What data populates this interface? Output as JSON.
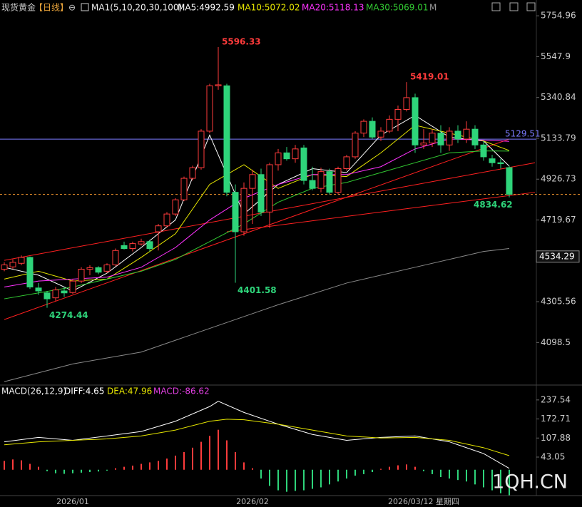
{
  "chart_data": [
    {
      "type": "candlestick",
      "title": "现货黄金",
      "period": "【日线】",
      "icon": "⊖",
      "indicator": "MA1(5,10,20,30,100)",
      "toolbar": "M",
      "categories": [
        null,
        null,
        null,
        null,
        null,
        null,
        null,
        null,
        "2026/01",
        null,
        null,
        null,
        null,
        null,
        null,
        null,
        null,
        null,
        null,
        null,
        null,
        null,
        null,
        null,
        null,
        null,
        null,
        null,
        null,
        "2026/02",
        null,
        null,
        null,
        null,
        null,
        null,
        null,
        null,
        null,
        null,
        null,
        null,
        null,
        null,
        null,
        null,
        null,
        null,
        null,
        "2026/03/12 星期四",
        null,
        null,
        null,
        null,
        null,
        null,
        null,
        null,
        null,
        null
      ],
      "up_color": "#ff3b3b",
      "down_color": "#2ed47a",
      "ohlc": [
        [
          4470,
          4505,
          4460,
          4492
        ],
        [
          4482,
          4520,
          4472,
          4505
        ],
        [
          4500,
          4540,
          4490,
          4530
        ],
        [
          4530,
          4535,
          4370,
          4380
        ],
        [
          4375,
          4400,
          4340,
          4360
        ],
        [
          4350,
          4360,
          4274.44,
          4320
        ],
        [
          4325,
          4380,
          4310,
          4365
        ],
        [
          4360,
          4380,
          4330,
          4350
        ],
        [
          4352,
          4420,
          4345,
          4410
        ],
        [
          4410,
          4480,
          4400,
          4470
        ],
        [
          4470,
          4490,
          4440,
          4478
        ],
        [
          4478,
          4485,
          4445,
          4455
        ],
        [
          4460,
          4500,
          4450,
          4492
        ],
        [
          4492,
          4575,
          4485,
          4565
        ],
        [
          4590,
          4610,
          4570,
          4575
        ],
        [
          4575,
          4610,
          4560,
          4600
        ],
        [
          4598,
          4625,
          4590,
          4610
        ],
        [
          4610,
          4620,
          4560,
          4575
        ],
        [
          4660,
          4700,
          4565,
          4690
        ],
        [
          4690,
          4760,
          4680,
          4750
        ],
        [
          4750,
          4830,
          4740,
          4822
        ],
        [
          4822,
          4940,
          4815,
          4931
        ],
        [
          4931,
          4995,
          4920,
          4985
        ],
        [
          4985,
          5180,
          4975,
          5170
        ],
        [
          5170,
          5410,
          5160,
          5400
        ],
        [
          5400,
          5596.33,
          5380,
          5405
        ],
        [
          5400,
          5410,
          4840,
          4860
        ],
        [
          4860,
          4900,
          4401.58,
          4660
        ],
        [
          4660,
          4910,
          4640,
          4880
        ],
        [
          4880,
          4975,
          4700,
          4950
        ],
        [
          4950,
          4980,
          4740,
          4760
        ],
        [
          4760,
          5010,
          4680,
          5000
        ],
        [
          5000,
          5080,
          4970,
          5060
        ],
        [
          5060,
          5090,
          5020,
          5030
        ],
        [
          5030,
          5100,
          5010,
          5080
        ],
        [
          5085,
          5100,
          4900,
          4920
        ],
        [
          4920,
          4990,
          4870,
          4880
        ],
        [
          4880,
          4985,
          4860,
          4965
        ],
        [
          4965,
          4980,
          4850,
          4860
        ],
        [
          4860,
          4990,
          4850,
          4980
        ],
        [
          4980,
          5050,
          4970,
          5040
        ],
        [
          5040,
          5170,
          5030,
          5160
        ],
        [
          5160,
          5230,
          5140,
          5220
        ],
        [
          5220,
          5240,
          5130,
          5140
        ],
        [
          5140,
          5190,
          5120,
          5170
        ],
        [
          5170,
          5250,
          5160,
          5230
        ],
        [
          5230,
          5300,
          5170,
          5280
        ],
        [
          5280,
          5419.01,
          5270,
          5340
        ],
        [
          5340,
          5360,
          5060,
          5100
        ],
        [
          5100,
          5180,
          5080,
          5110
        ],
        [
          5110,
          5180,
          5090,
          5160
        ],
        [
          5160,
          5200,
          5060,
          5100
        ],
        [
          5100,
          5190,
          5070,
          5170
        ],
        [
          5170,
          5200,
          5110,
          5130
        ],
        [
          5130,
          5220,
          5110,
          5180
        ],
        [
          5180,
          5200,
          5080,
          5100
        ],
        [
          5100,
          5120,
          5020,
          5040
        ],
        [
          5030,
          5050,
          4990,
          5010
        ],
        [
          5010,
          5030,
          4980,
          5005
        ],
        [
          4985,
          4995,
          4834.62,
          4850
        ]
      ],
      "series": [
        {
          "name": "MA5:4992.59",
          "color": "#ffffff",
          "x": [
            0,
            4,
            8,
            12,
            16,
            20,
            24,
            28,
            32,
            36,
            40,
            44,
            48,
            52,
            56,
            59
          ],
          "values": [
            4480,
            4440,
            4360,
            4450,
            4580,
            4720,
            5150,
            4750,
            4900,
            4980,
            4960,
            5150,
            5250,
            5140,
            5120,
            4992.59
          ]
        },
        {
          "name": "MA10:5072.02",
          "color": "#e6e600",
          "x": [
            0,
            4,
            8,
            12,
            16,
            20,
            24,
            28,
            32,
            36,
            40,
            44,
            48,
            52,
            56,
            59
          ],
          "values": [
            4420,
            4460,
            4410,
            4420,
            4530,
            4650,
            4900,
            5000,
            4880,
            4950,
            4940,
            5060,
            5200,
            5160,
            5120,
            5072.02
          ]
        },
        {
          "name": "MA20:5118.13",
          "color": "#ff33ff",
          "x": [
            0,
            4,
            8,
            12,
            16,
            20,
            24,
            28,
            32,
            36,
            40,
            44,
            48,
            52,
            56,
            59
          ],
          "values": [
            4380,
            4410,
            4420,
            4430,
            4480,
            4580,
            4720,
            4830,
            4900,
            4950,
            4950,
            4990,
            5080,
            5130,
            5125,
            5118.13
          ]
        },
        {
          "name": "MA30:5069.01",
          "color": "#33cc33",
          "x": [
            0,
            4,
            8,
            12,
            16,
            20,
            24,
            28,
            32,
            36,
            40,
            44,
            48,
            52,
            56,
            59
          ],
          "values": [
            4320,
            4350,
            4380,
            4420,
            4460,
            4520,
            4610,
            4700,
            4810,
            4880,
            4910,
            4960,
            5010,
            5060,
            5070,
            5069.01
          ]
        },
        {
          "color": "#8a8a8a",
          "x": [
            0,
            8,
            16,
            24,
            32,
            40,
            48,
            56,
            59
          ],
          "values": [
            3900,
            3990,
            4050,
            4170,
            4290,
            4400,
            4480,
            4560,
            4575
          ]
        }
      ],
      "trendlines": [
        {
          "color": "#ff2020",
          "x": [
            0,
            62
          ],
          "values": [
            4515,
            5010
          ]
        },
        {
          "color": "#ff2020",
          "x": [
            0,
            59
          ],
          "values": [
            4215,
            5130
          ]
        },
        {
          "color": "#ff2020",
          "x": [
            26,
            62
          ],
          "values": [
            4660,
            4860
          ]
        }
      ],
      "hline": {
        "value": 5129.51,
        "color": "#7b7bff"
      },
      "last_line_color": "#e08a2a",
      "price_marker": 4534.29,
      "ylim": [
        3890,
        5835
      ],
      "yticks": [
        5754.96,
        5547.9,
        5340.84,
        5133.79,
        4926.73,
        4719.67,
        4305.56,
        4098.5
      ]
    },
    {
      "type": "macd",
      "title": "MACD(26,12,9)",
      "series": [
        {
          "name": "DIFF:4.65",
          "color": "#ffffff",
          "x": [
            0,
            4,
            8,
            12,
            16,
            20,
            24,
            25,
            28,
            32,
            36,
            40,
            44,
            48,
            52,
            56,
            59
          ],
          "values": [
            95,
            110,
            100,
            115,
            130,
            165,
            215,
            233,
            195,
            155,
            120,
            100,
            110,
            115,
            95,
            55,
            4.65
          ]
        },
        {
          "name": "DEA:47.96",
          "color": "#e6e600",
          "x": [
            0,
            4,
            8,
            12,
            16,
            20,
            24,
            26,
            28,
            32,
            36,
            40,
            44,
            48,
            52,
            56,
            59
          ],
          "values": [
            85,
            95,
            100,
            105,
            115,
            135,
            165,
            172,
            170,
            155,
            135,
            115,
            108,
            110,
            100,
            75,
            47.96
          ]
        }
      ],
      "histogram": {
        "name": "MACD:-86.62",
        "color": "#e040e0",
        "up_color": "#ff3b3b",
        "down_color": "#2ed47a",
        "values": [
          30,
          35,
          32,
          20,
          10,
          -5,
          -12,
          -14,
          -12,
          -10,
          -8,
          -6,
          -3,
          5,
          10,
          14,
          20,
          25,
          30,
          38,
          48,
          60,
          75,
          95,
          115,
          136,
          100,
          60,
          25,
          5,
          -30,
          -55,
          -70,
          -75,
          -72,
          -70,
          -65,
          -60,
          -50,
          -40,
          -30,
          -20,
          -15,
          -8,
          3,
          10,
          15,
          18,
          10,
          -5,
          -15,
          -25,
          -30,
          -35,
          -40,
          -50,
          -60,
          -70,
          -80,
          -86.62
        ]
      },
      "ylim": [
        -88,
        276
      ],
      "yticks": [
        237.54,
        172.71,
        107.88,
        43.05
      ]
    }
  ],
  "watermark": "1QH.CN"
}
